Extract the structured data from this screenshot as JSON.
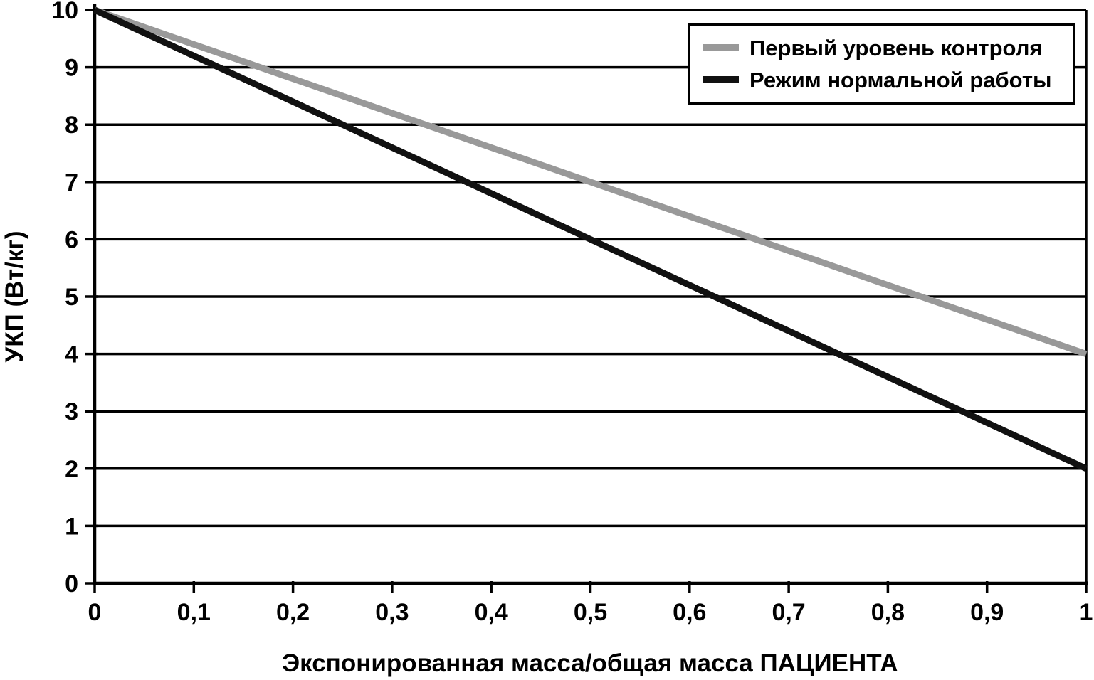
{
  "chart_data": {
    "type": "line",
    "title": "",
    "xlabel": "Экспонированная масса/общая масса ПАЦИЕНТА",
    "ylabel": "УКП (Вт/кг)",
    "xlim": [
      0,
      1
    ],
    "ylim": [
      0,
      10
    ],
    "x_ticks": [
      0,
      0.1,
      0.2,
      0.3,
      0.4,
      0.5,
      0.6,
      0.7,
      0.8,
      0.9,
      1
    ],
    "x_tick_labels": [
      "0",
      "0,1",
      "0,2",
      "0,3",
      "0,4",
      "0,5",
      "0,6",
      "0,7",
      "0,8",
      "0,9",
      "1"
    ],
    "y_ticks": [
      0,
      1,
      2,
      3,
      4,
      5,
      6,
      7,
      8,
      9,
      10
    ],
    "y_tick_labels": [
      "0",
      "1",
      "2",
      "3",
      "4",
      "5",
      "6",
      "7",
      "8",
      "9",
      "10"
    ],
    "grid": "horizontal",
    "legend": {
      "position": "top-right",
      "entries": [
        "Первый уровень контроля",
        "Режим нормальной работы"
      ]
    },
    "series": [
      {
        "name": "Первый уровень контроля",
        "color": "#999999",
        "points": [
          [
            0,
            10
          ],
          [
            1,
            4
          ]
        ]
      },
      {
        "name": "Режим нормальной работы",
        "color": "#111111",
        "points": [
          [
            0,
            10
          ],
          [
            1,
            2
          ]
        ]
      }
    ],
    "colors": {
      "grid": "#000000",
      "axis": "#000000",
      "text": "#000000",
      "background": "#ffffff",
      "legend_border": "#000000"
    }
  }
}
